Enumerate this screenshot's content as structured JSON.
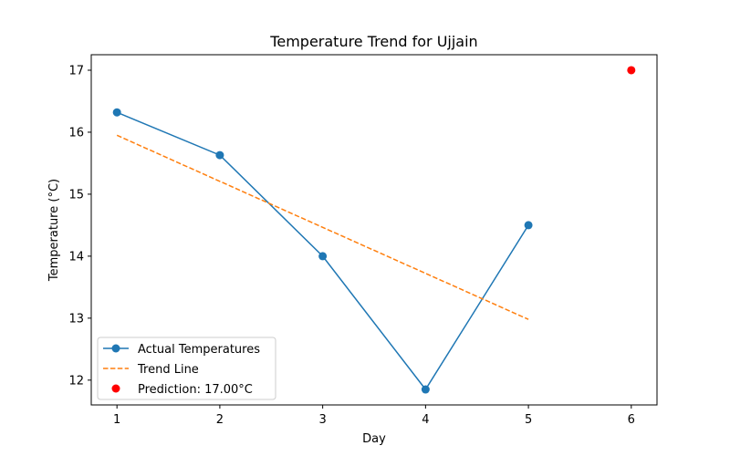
{
  "chart_data": {
    "type": "line",
    "title": "Temperature Trend for Ujjain",
    "xlabel": "Day",
    "ylabel": "Temperature (°C)",
    "xlim": [
      0.75,
      6.25
    ],
    "ylim": [
      11.6,
      17.25
    ],
    "xticks": [
      1,
      2,
      3,
      4,
      5,
      6
    ],
    "yticks": [
      12,
      13,
      14,
      15,
      16,
      17
    ],
    "grid": false,
    "legend_position": "lower-left",
    "series": [
      {
        "name": "Actual Temperatures",
        "kind": "line-marker",
        "color": "#1f77b4",
        "x": [
          1,
          2,
          3,
          4,
          5
        ],
        "y": [
          16.32,
          15.63,
          14.0,
          11.85,
          14.5
        ]
      },
      {
        "name": "Trend Line",
        "kind": "dashed-line",
        "color": "#ff7f0e",
        "x": [
          1,
          5
        ],
        "y": [
          15.95,
          12.98
        ]
      },
      {
        "name": "Prediction: 17.00°C",
        "kind": "scatter",
        "color": "#ff0000",
        "x": [
          6
        ],
        "y": [
          17.0
        ]
      }
    ]
  }
}
